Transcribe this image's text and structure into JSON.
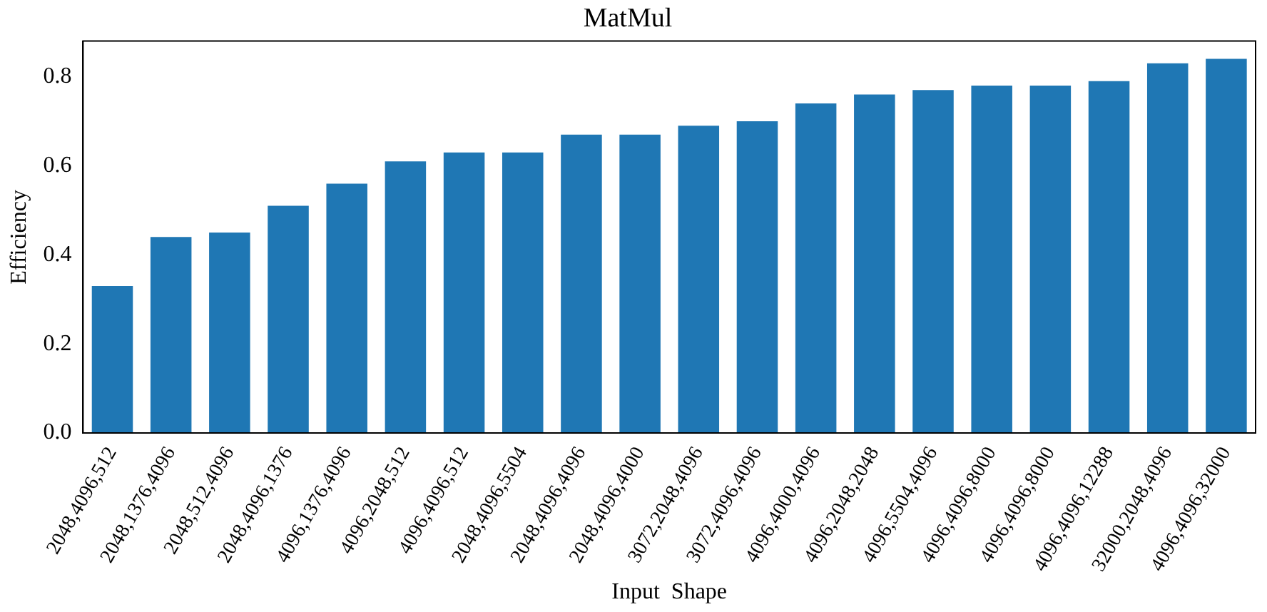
{
  "chart_data": {
    "type": "bar",
    "title": "MatMul",
    "xlabel": "Input  Shape",
    "ylabel": "Efficiency",
    "categories": [
      "2048,4096,512",
      "2048,1376,4096",
      "2048,512,4096",
      "2048,4096,1376",
      "4096,1376,4096",
      "4096,2048,512",
      "4096,4096,512",
      "2048,4096,5504",
      "2048,4096,4096",
      "2048,4096,4000",
      "3072,2048,4096",
      "3072,4096,4096",
      "4096,4000,4096",
      "4096,2048,2048",
      "4096,5504,4096",
      "4096,4096,8000",
      "4096,4096,8000",
      "4096,4096,12288",
      "32000,2048,4096",
      "4096,4096,32000"
    ],
    "values": [
      0.33,
      0.44,
      0.45,
      0.51,
      0.56,
      0.61,
      0.63,
      0.63,
      0.67,
      0.67,
      0.69,
      0.7,
      0.74,
      0.76,
      0.77,
      0.78,
      0.78,
      0.79,
      0.83,
      0.84
    ],
    "color": "#1f77b4",
    "ylim": [
      0,
      0.88
    ],
    "yticks": [
      {
        "value": 0,
        "label": "0.0"
      },
      {
        "value": 0.2,
        "label": "0.2"
      },
      {
        "value": 0.4,
        "label": "0.4"
      },
      {
        "value": 0.6,
        "label": "0.6"
      },
      {
        "value": 0.8,
        "label": "0.8"
      }
    ],
    "grid": false,
    "legend": false
  }
}
